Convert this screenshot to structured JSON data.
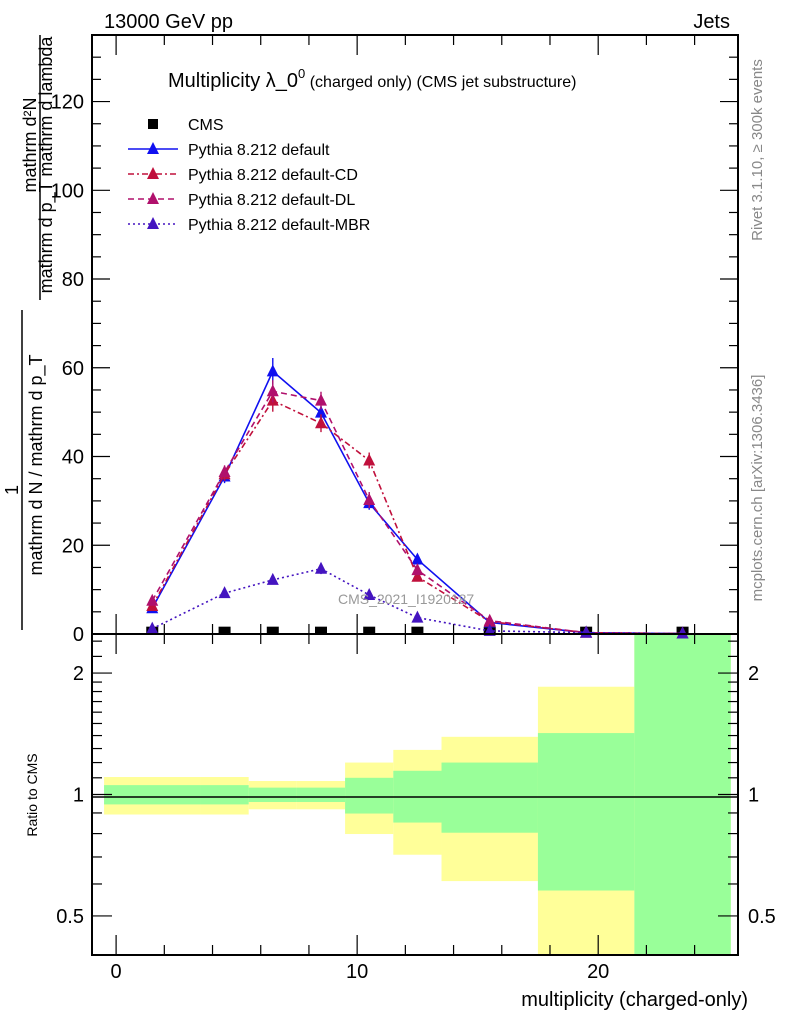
{
  "header": {
    "left": "13000 GeV pp",
    "right": "Jets"
  },
  "side_text": {
    "rivet": "Rivet 3.1.10, ≥ 300k events",
    "mcplots": "mcplots.cern.ch [arXiv:1306.3436]"
  },
  "watermark": "CMS_2021_I1920187",
  "colors": {
    "cms": "#000000",
    "default": "#1010f0",
    "cd": "#c0103c",
    "dl": "#b0106c",
    "mbr": "#4414c0",
    "yellow": "#ffff99",
    "green": "#99ff99"
  },
  "chart_data": [
    {
      "type": "line",
      "title_main": "Multiplicity λ_0",
      "title_sup": "0",
      "title_sub": " (charged only) (CMS jet substructure)",
      "ylabel": {
        "numerator_top": "mathrm d²N",
        "denominator_top": "mathrm d p_T mathrm d lambda",
        "numerator_bottom": "1",
        "denominator_bottom": "mathrm d N / mathrm d p_T"
      },
      "xlim": [
        -1,
        25.8
      ],
      "ylim": [
        0,
        135
      ],
      "yticks": [
        0,
        20,
        40,
        60,
        80,
        100,
        120
      ],
      "x": [
        1.5,
        4.5,
        6.5,
        8.5,
        10.5,
        12.5,
        15.5,
        19.5,
        23.5
      ],
      "series": [
        {
          "key": "cms",
          "name": "CMS",
          "marker": "square",
          "values": [
            0.3,
            0.3,
            0.3,
            0.3,
            0.3,
            0.3,
            0.3,
            0.3,
            0.3
          ]
        },
        {
          "key": "default",
          "name": "Pythia 8.212 default",
          "style": "solid",
          "values": [
            5.8,
            35.5,
            59.2,
            49.9,
            29.5,
            16.8,
            2.6,
            0.3,
            0.1
          ],
          "errors": [
            0.6,
            1.5,
            3.0,
            1.5,
            1.5,
            1.2,
            0.4,
            0.1,
            0.1
          ]
        },
        {
          "key": "cd",
          "name": "Pythia 8.212 default-CD",
          "style": "dashdot",
          "values": [
            6.3,
            36.0,
            52.6,
            47.5,
            39.1,
            12.9,
            2.8,
            0.3,
            0.1
          ],
          "errors": [
            0.6,
            1.5,
            2.5,
            2.0,
            1.8,
            1.0,
            0.4,
            0.1,
            0.1
          ]
        },
        {
          "key": "dl",
          "name": "Pythia 8.212 default-DL",
          "style": "dashed",
          "values": [
            7.5,
            36.5,
            54.7,
            52.6,
            30.2,
            14.4,
            3.0,
            0.3,
            0.1
          ],
          "errors": [
            0.6,
            1.5,
            2.5,
            2.0,
            1.8,
            1.0,
            0.4,
            0.1,
            0.1
          ]
        },
        {
          "key": "mbr",
          "name": "Pythia 8.212 default-MBR",
          "style": "dotted",
          "values": [
            1.2,
            9.2,
            12.2,
            14.7,
            8.8,
            3.7,
            0.7,
            0.3,
            0.1
          ],
          "errors": [
            0.3,
            0.8,
            1.0,
            1.2,
            0.8,
            0.4,
            0.2,
            0.1,
            0.1
          ]
        }
      ]
    },
    {
      "type": "area",
      "ylabel": "Ratio to CMS",
      "xlabel": "multiplicity (charged-only)",
      "scale": "log",
      "ylim": [
        0.4,
        2.5
      ],
      "yticks": [
        0.5,
        1,
        2
      ],
      "xticks": [
        0,
        10,
        20
      ],
      "bin_edges": [
        -0.5,
        3.5,
        5.5,
        7.5,
        9.5,
        11.5,
        13.5,
        17.5,
        21.5,
        25.5
      ],
      "green_band": [
        [
          0.945,
          1.055
        ],
        [
          0.945,
          1.055
        ],
        [
          0.958,
          1.04
        ],
        [
          0.958,
          1.04
        ],
        [
          0.897,
          1.1
        ],
        [
          0.852,
          1.145
        ],
        [
          0.804,
          1.2
        ],
        [
          0.578,
          1.42
        ],
        [
          0.4,
          2.5
        ]
      ],
      "yellow_band": [
        [
          0.892,
          1.105
        ],
        [
          0.892,
          1.105
        ],
        [
          0.919,
          1.08
        ],
        [
          0.919,
          1.08
        ],
        [
          0.798,
          1.2
        ],
        [
          0.709,
          1.29
        ],
        [
          0.61,
          1.39
        ],
        [
          0.4,
          1.85
        ],
        [
          0.4,
          2.5
        ]
      ]
    }
  ]
}
